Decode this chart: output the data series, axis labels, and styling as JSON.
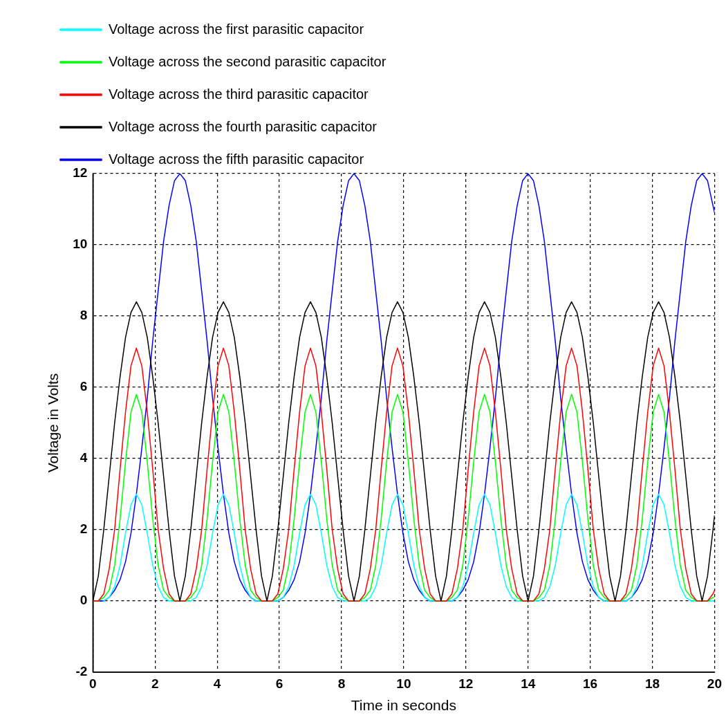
{
  "chart_data": {
    "type": "line",
    "xlabel": "Time in seconds",
    "ylabel": "Voltage in Volts",
    "x": [
      0,
      0.175,
      0.35,
      0.525,
      0.7,
      0.875,
      1.05,
      1.225,
      1.4,
      1.575,
      1.75,
      1.925,
      2.1,
      2.275,
      2.45,
      2.625,
      2.8,
      2.975,
      3.15,
      3.325,
      3.5,
      3.675,
      3.85,
      4.025,
      4.2,
      4.375,
      4.55,
      4.725,
      4.9,
      5.075,
      5.25,
      5.425,
      5.6,
      5.775,
      5.95,
      6.125,
      6.3,
      6.475,
      6.65,
      6.825,
      7,
      7.175,
      7.35,
      7.525,
      7.7,
      7.875,
      8.05,
      8.225,
      8.4,
      8.575,
      8.75,
      8.925,
      9.1,
      9.275,
      9.45,
      9.625,
      9.8,
      9.975,
      10.15,
      10.325,
      10.5,
      10.675,
      10.85,
      11.025,
      11.2,
      11.375,
      11.55,
      11.725,
      11.9,
      12.075,
      12.25,
      12.425,
      12.6,
      12.775,
      12.95,
      13.125,
      13.3,
      13.475,
      13.65,
      13.825,
      14,
      14.175,
      14.35,
      14.525,
      14.7,
      14.875,
      15.05,
      15.225,
      15.4,
      15.575,
      15.75,
      15.925,
      16.1,
      16.275,
      16.45,
      16.625,
      16.8,
      16.975,
      17.15,
      17.325,
      17.5,
      17.675,
      17.85,
      18.025,
      18.2,
      18.375,
      18.55,
      18.725,
      18.9,
      19.075,
      19.25,
      19.425,
      19.6,
      19.775,
      19.95,
      20
    ],
    "series": [
      {
        "name": "Voltage across the first parasitic capacitor",
        "color": "#00ffff",
        "values": [
          null,
          null,
          0,
          0.1,
          0.4,
          1.0,
          1.9,
          2.7,
          3.0,
          2.7,
          1.9,
          1.0,
          0.4,
          0.1,
          0,
          0,
          0,
          0,
          0,
          0.1,
          0.4,
          1.0,
          1.9,
          2.7,
          3.0,
          2.7,
          1.9,
          1.0,
          0.4,
          0.1,
          0,
          0,
          0,
          0,
          0,
          0.1,
          0.4,
          1.0,
          1.9,
          2.7,
          3.0,
          2.7,
          1.9,
          1.0,
          0.4,
          0.1,
          0,
          0,
          0,
          0,
          0,
          0.1,
          0.4,
          1.0,
          1.9,
          2.7,
          3.0,
          2.7,
          1.9,
          1.0,
          0.4,
          0.1,
          0,
          0,
          0,
          0,
          0,
          0.1,
          0.4,
          1.0,
          1.9,
          2.7,
          3.0,
          2.7,
          1.9,
          1.0,
          0.4,
          0.1,
          0,
          0,
          0,
          0,
          0,
          0.1,
          0.4,
          1.0,
          1.9,
          2.7,
          3.0,
          2.7,
          1.9,
          1.0,
          0.4,
          0.1,
          0,
          0,
          0,
          0,
          0,
          0.1,
          0.4,
          1.0,
          1.9,
          2.7,
          3.0,
          2.7,
          1.9,
          1.0,
          0.4,
          0.1,
          0,
          0,
          0,
          0,
          0,
          0
        ]
      },
      {
        "name": "Voltage across the second parasitic capacitor",
        "color": "#00ff00",
        "values": [
          0,
          0,
          0.1,
          0.3,
          1.0,
          2.3,
          3.9,
          5.3,
          5.8,
          5.3,
          3.9,
          2.3,
          1.0,
          0.3,
          0.1,
          0,
          0,
          0,
          0.1,
          0.3,
          1.0,
          2.3,
          3.9,
          5.3,
          5.8,
          5.3,
          3.9,
          2.3,
          1.0,
          0.3,
          0.1,
          0,
          0,
          0,
          0.1,
          0.3,
          1.0,
          2.3,
          3.9,
          5.3,
          5.8,
          5.3,
          3.9,
          2.3,
          1.0,
          0.3,
          0.1,
          0,
          0,
          0,
          0.1,
          0.3,
          1.0,
          2.3,
          3.9,
          5.3,
          5.8,
          5.3,
          3.9,
          2.3,
          1.0,
          0.3,
          0.1,
          0,
          0,
          0,
          0.1,
          0.3,
          1.0,
          2.3,
          3.9,
          5.3,
          5.8,
          5.3,
          3.9,
          2.3,
          1.0,
          0.3,
          0.1,
          0,
          0,
          0,
          0.1,
          0.3,
          1.0,
          2.3,
          3.9,
          5.3,
          5.8,
          5.3,
          3.9,
          2.3,
          1.0,
          0.3,
          0.1,
          0,
          0,
          0,
          0.1,
          0.3,
          1.0,
          2.3,
          3.9,
          5.3,
          5.8,
          5.3,
          3.9,
          2.3,
          1.0,
          0.3,
          0.1,
          0,
          0,
          0,
          0.1,
          0.1
        ]
      },
      {
        "name": "Voltage across the third parasitic capacitor",
        "color": "#ff0000",
        "values": [
          0,
          0,
          0.2,
          0.9,
          2.0,
          3.7,
          5.3,
          6.6,
          7.1,
          6.6,
          5.3,
          3.7,
          2.0,
          0.9,
          0.2,
          0,
          0,
          0,
          0.2,
          0.9,
          2.0,
          3.7,
          5.3,
          6.6,
          7.1,
          6.6,
          5.3,
          3.7,
          2.0,
          0.9,
          0.2,
          0,
          0,
          0,
          0.2,
          0.9,
          2.0,
          3.7,
          5.3,
          6.6,
          7.1,
          6.6,
          5.3,
          3.7,
          2.0,
          0.9,
          0.2,
          0,
          0,
          0,
          0.2,
          0.9,
          2.0,
          3.7,
          5.3,
          6.6,
          7.1,
          6.6,
          5.3,
          3.7,
          2.0,
          0.9,
          0.2,
          0,
          0,
          0,
          0.2,
          0.9,
          2.0,
          3.7,
          5.3,
          6.6,
          7.1,
          6.6,
          5.3,
          3.7,
          2.0,
          0.9,
          0.2,
          0,
          0,
          0,
          0.2,
          0.9,
          2.0,
          3.7,
          5.3,
          6.6,
          7.1,
          6.6,
          5.3,
          3.7,
          2.0,
          0.9,
          0.2,
          0,
          0,
          0,
          0.2,
          0.9,
          2.0,
          3.7,
          5.3,
          6.6,
          7.1,
          6.6,
          5.3,
          3.7,
          2.0,
          0.9,
          0.2,
          0,
          0,
          0,
          0.2,
          0.3
        ]
      },
      {
        "name": "Voltage across the fourth parasitic capacitor",
        "color": "#000000",
        "values": [
          0,
          0.7,
          2.0,
          3.5,
          5.0,
          6.3,
          7.4,
          8.1,
          8.4,
          8.1,
          7.4,
          6.3,
          5.0,
          3.5,
          2.0,
          0.7,
          0,
          0.7,
          2.0,
          3.5,
          5.0,
          6.3,
          7.4,
          8.1,
          8.4,
          8.1,
          7.4,
          6.3,
          5.0,
          3.5,
          2.0,
          0.7,
          0,
          0.7,
          2.0,
          3.5,
          5.0,
          6.3,
          7.4,
          8.1,
          8.4,
          8.1,
          7.4,
          6.3,
          5.0,
          3.5,
          2.0,
          0.7,
          0,
          0.7,
          2.0,
          3.5,
          5.0,
          6.3,
          7.4,
          8.1,
          8.4,
          8.1,
          7.4,
          6.3,
          5.0,
          3.5,
          2.0,
          0.7,
          0,
          0.7,
          2.0,
          3.5,
          5.0,
          6.3,
          7.4,
          8.1,
          8.4,
          8.1,
          7.4,
          6.3,
          5.0,
          3.5,
          2.0,
          0.7,
          0,
          0.7,
          2.0,
          3.5,
          5.0,
          6.3,
          7.4,
          8.1,
          8.4,
          8.1,
          7.4,
          6.3,
          5.0,
          3.5,
          2.0,
          0.7,
          0,
          0.7,
          2.0,
          3.5,
          5.0,
          6.3,
          7.4,
          8.1,
          8.4,
          8.1,
          7.4,
          6.3,
          5.0,
          3.5,
          2.0,
          0.7,
          0,
          0.7,
          2.0,
          2.4
        ]
      },
      {
        "name": "Voltage across the fifth parasitic capacitor",
        "color": "#0000ff",
        "values": [
          0,
          0,
          0,
          0.1,
          0.3,
          0.6,
          1.1,
          1.9,
          3.0,
          4.3,
          5.7,
          7.3,
          8.7,
          10.1,
          11.1,
          11.8,
          12,
          11.8,
          11.1,
          10.1,
          8.7,
          7.3,
          5.7,
          4.3,
          3.0,
          1.9,
          1.1,
          0.6,
          0.3,
          0.1,
          0,
          0,
          0,
          0,
          0,
          0.1,
          0.3,
          0.6,
          1.1,
          1.9,
          3.0,
          4.3,
          5.7,
          7.3,
          8.7,
          10.1,
          11.1,
          11.8,
          12,
          11.8,
          11.1,
          10.1,
          8.7,
          7.3,
          5.7,
          4.3,
          3.0,
          1.9,
          1.1,
          0.6,
          0.3,
          0.1,
          0,
          0,
          0,
          0,
          0,
          0.1,
          0.3,
          0.6,
          1.1,
          1.9,
          3.0,
          4.3,
          5.7,
          7.3,
          8.7,
          10.1,
          11.1,
          11.8,
          12,
          11.8,
          11.1,
          10.1,
          8.7,
          7.3,
          5.7,
          4.3,
          3.0,
          1.9,
          1.1,
          0.6,
          0.3,
          0.1,
          0,
          0,
          0,
          0,
          0,
          0.1,
          0.3,
          0.6,
          1.1,
          1.9,
          3.0,
          4.3,
          5.7,
          7.3,
          8.7,
          10.1,
          11.1,
          11.8,
          12,
          11.8,
          11.1,
          10.9
        ]
      }
    ],
    "xlim": [
      0,
      20
    ],
    "xticks": [
      0,
      2,
      4,
      6,
      8,
      10,
      12,
      14,
      16,
      18,
      20
    ],
    "ylim": [
      -2,
      12
    ],
    "yticks": [
      -2,
      0,
      2,
      4,
      6,
      8,
      10,
      12
    ],
    "grid": true,
    "legend": "top left"
  }
}
